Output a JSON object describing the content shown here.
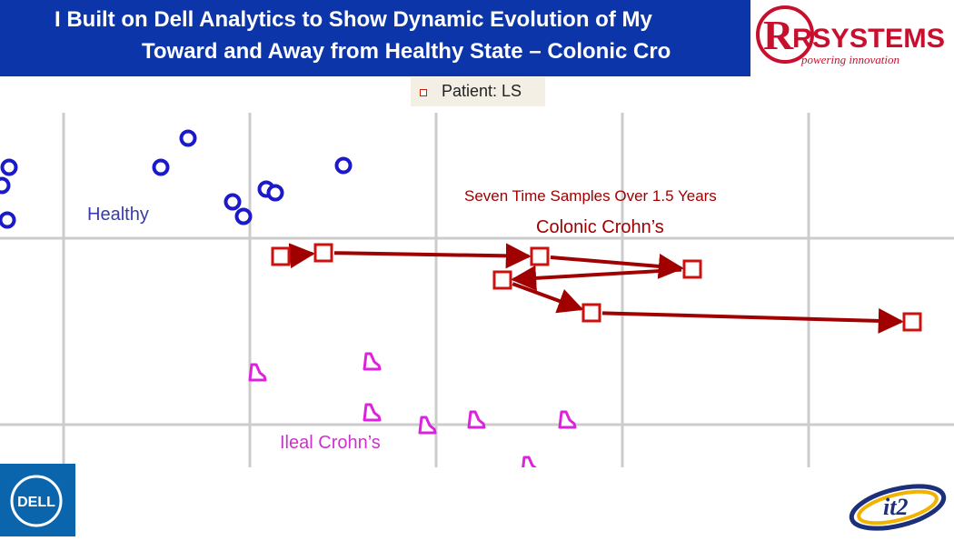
{
  "header": {
    "title_line_1": "I Built on Dell Analytics to Show Dynamic Evolution of My",
    "title_line_2": "Toward and Away from Healthy State – Colonic Cro",
    "background_color": "#0b35a8"
  },
  "logos": {
    "rsystems": {
      "name": "RSYSTEMS",
      "tagline": "powering innovation"
    },
    "dell": {
      "name": "DELL"
    },
    "it2": {
      "name": "it2"
    }
  },
  "chart_data": {
    "type": "scatter",
    "title": "",
    "xlabel": "",
    "ylabel": "",
    "grid": true,
    "xlim": [
      0,
      1050
    ],
    "ylim": [
      0,
      430
    ],
    "legend": {
      "placement": "top-center",
      "entries": [
        "Patient: LS"
      ]
    },
    "annotations": {
      "healthy": "Healthy",
      "samples": "Seven Time Samples Over 1.5 Years",
      "colonic": "Colonic Crohn’s",
      "ileal": "Ileal Crohn’s"
    },
    "series": [
      {
        "name": "Healthy",
        "marker": "circle",
        "color": "#1a1acc",
        "points": [
          [
            207,
            362
          ],
          [
            10,
            330
          ],
          [
            177,
            330
          ],
          [
            378,
            332
          ],
          [
            2,
            310
          ],
          [
            293,
            306
          ],
          [
            303,
            302
          ],
          [
            256,
            292
          ],
          [
            268,
            276
          ],
          [
            8,
            272
          ]
        ]
      },
      {
        "name": "Patient: LS",
        "marker": "square",
        "color": "#cc1111",
        "points": [
          [
            309,
            232
          ],
          [
            356,
            236
          ],
          [
            594,
            232
          ],
          [
            762,
            218
          ],
          [
            553,
            206
          ],
          [
            651,
            170
          ],
          [
            1004,
            160
          ]
        ],
        "path": [
          [
            309,
            232
          ],
          [
            356,
            236
          ],
          [
            594,
            232
          ],
          [
            762,
            218
          ],
          [
            553,
            206
          ],
          [
            651,
            170
          ],
          [
            1004,
            160
          ]
        ]
      },
      {
        "name": "Ileal Crohn’s",
        "marker": "triangle",
        "color": "#dd22dd",
        "points": [
          [
            283,
            104
          ],
          [
            409,
            116
          ],
          [
            409,
            60
          ],
          [
            470,
            46
          ],
          [
            524,
            52
          ],
          [
            624,
            52
          ],
          [
            583,
            2
          ]
        ]
      }
    ]
  }
}
